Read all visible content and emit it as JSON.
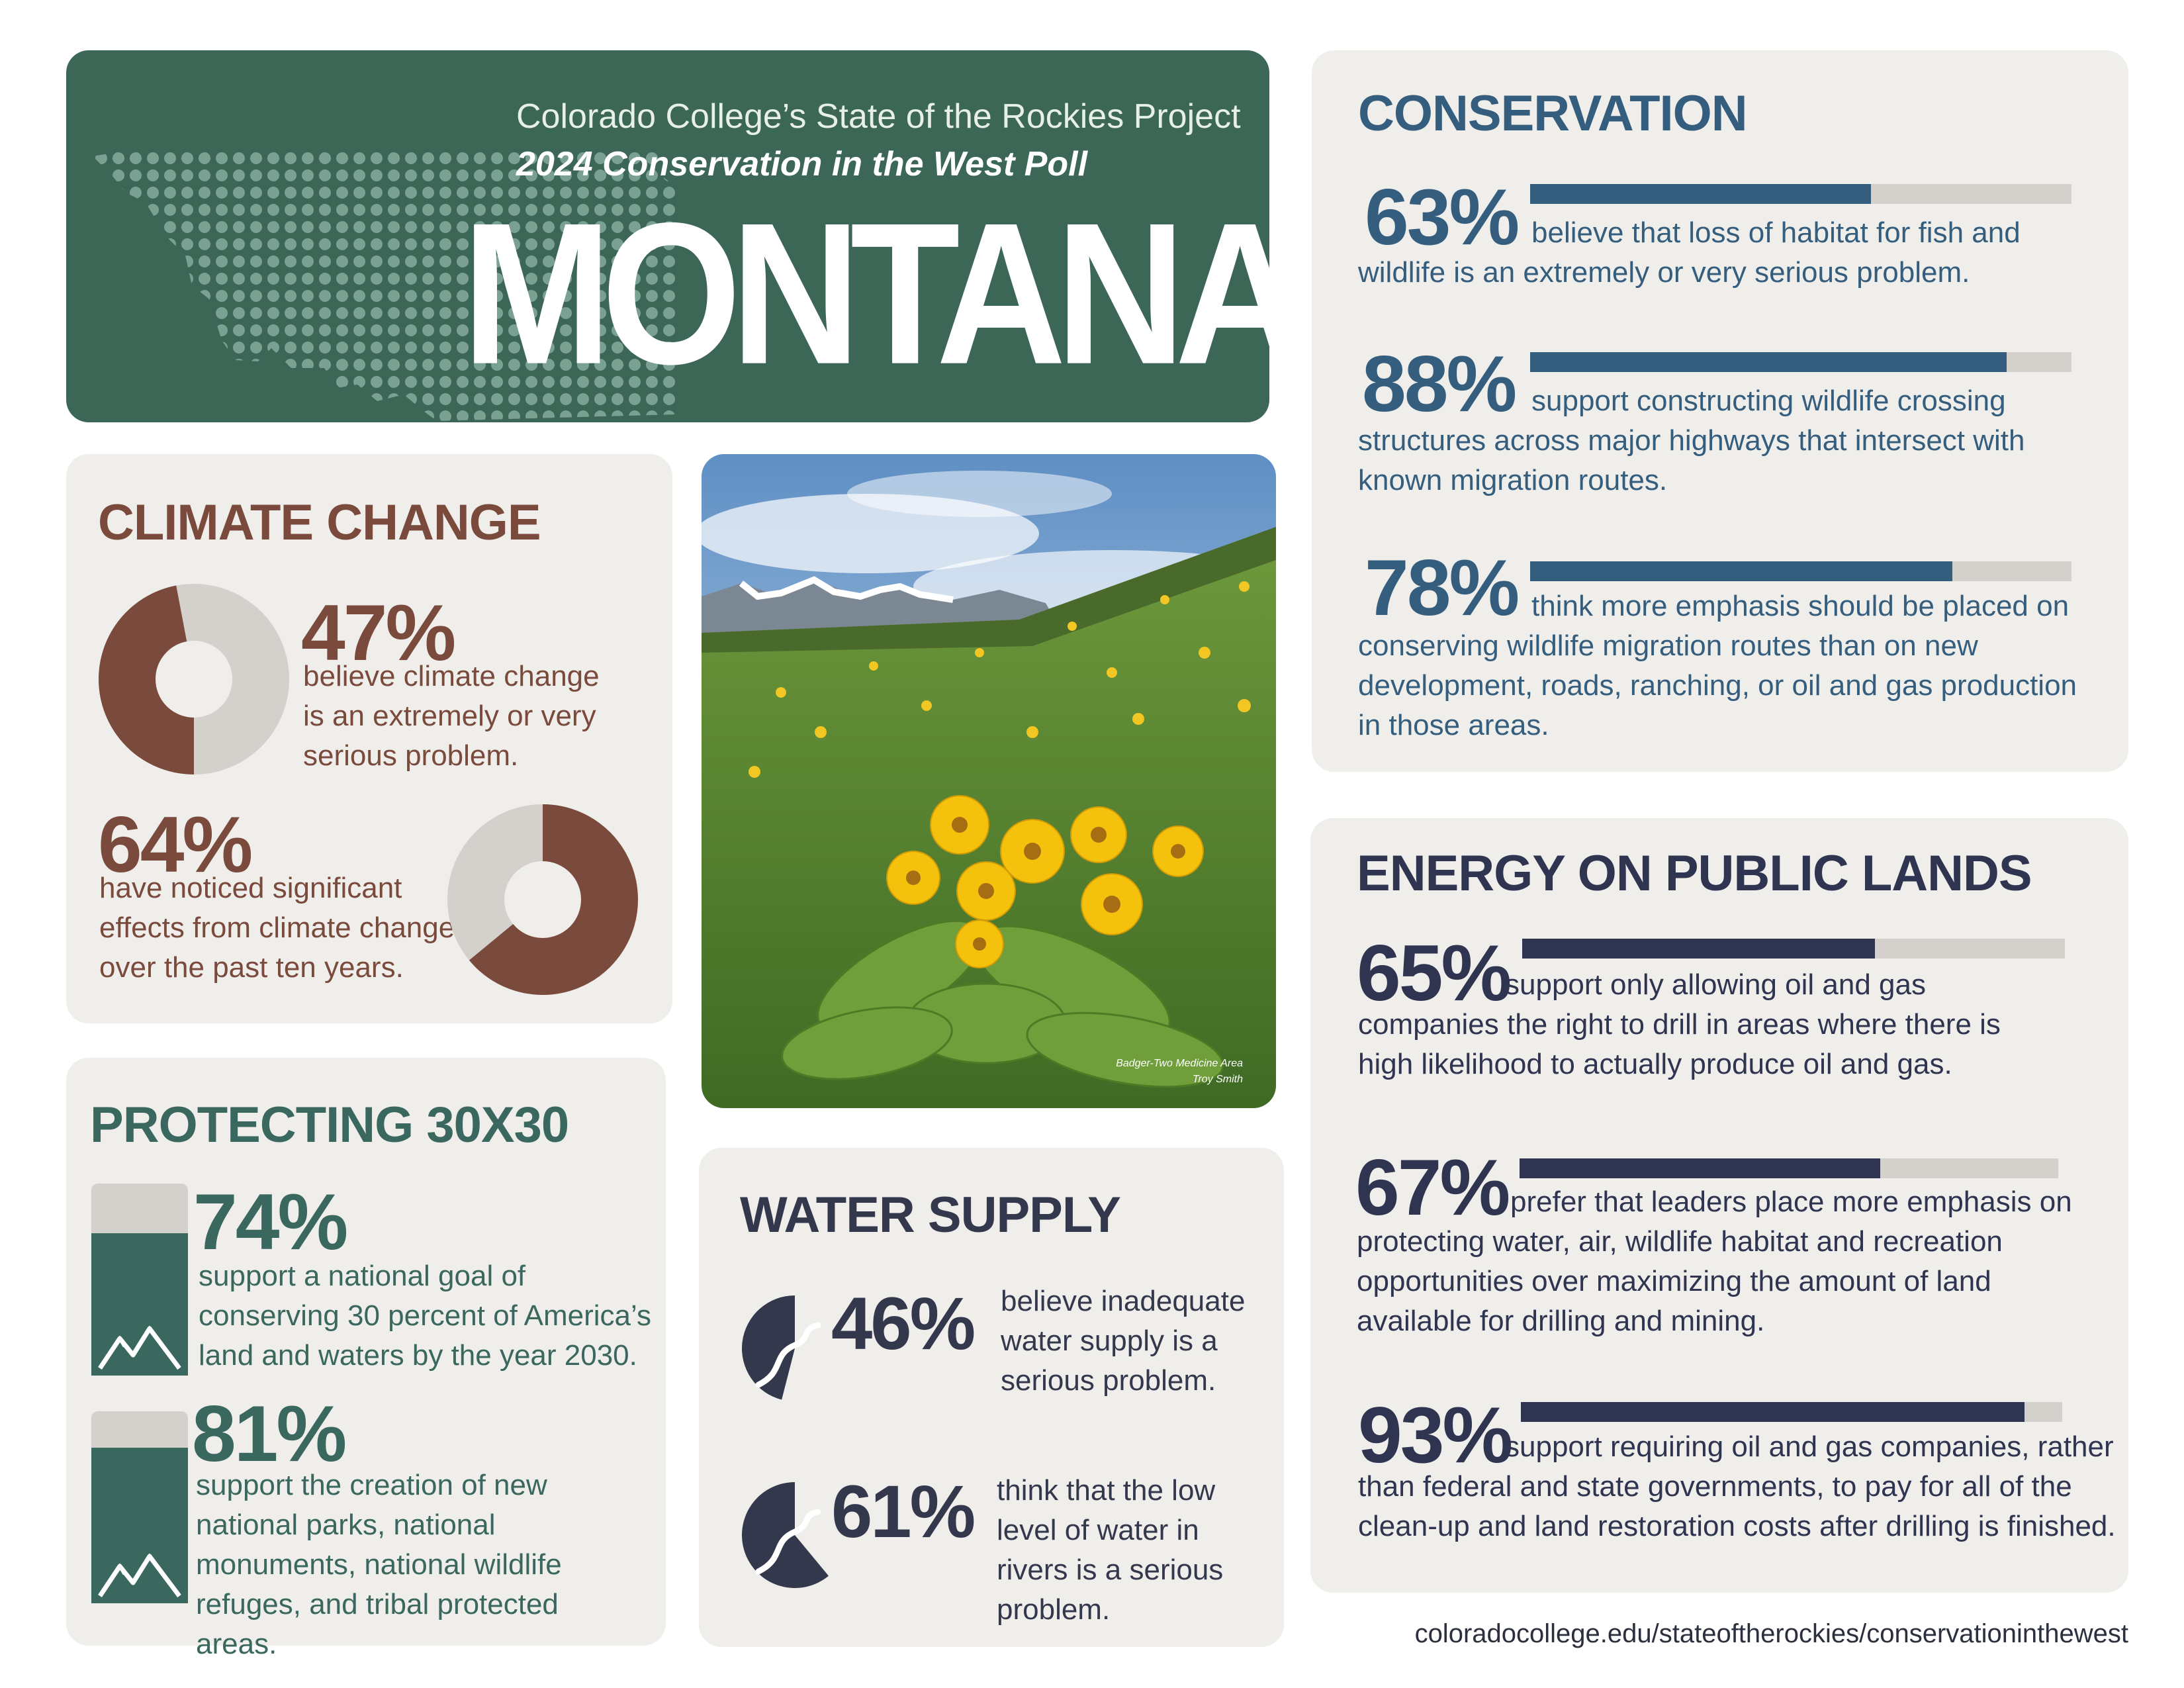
{
  "header": {
    "org": "Colorado College’s State of the Rockies Project",
    "poll": "2024 Conservation in the West Poll",
    "state": "MONTANA"
  },
  "colors": {
    "header_green": "#3c6656",
    "climate_brown": "#7a4a3d",
    "protect_green": "#3a675e",
    "conservation_blue": "#355d7e",
    "energy_navy": "#2f3450",
    "water_navy": "#34384d",
    "bar_track": "#d4d1cc",
    "card_bg": "#efeeea"
  },
  "climate": {
    "title": "CLIMATE CHANGE",
    "stats": [
      {
        "pct": "47%",
        "value": 47,
        "text": "believe climate change is an extremely or very serious problem."
      },
      {
        "pct": "64%",
        "value": 64,
        "text": "have noticed significant effects from climate change over the past ten years."
      }
    ]
  },
  "photo": {
    "credit_place": "Badger-Two Medicine Area",
    "credit_name": "Troy Smith"
  },
  "protecting": {
    "title": "PROTECTING 30X30",
    "icon": "mountain-icon",
    "stats": [
      {
        "pct": "74%",
        "value": 74,
        "text": "support a national goal of conserving 30 percent of America’s land and waters by the year 2030."
      },
      {
        "pct": "81%",
        "value": 81,
        "text": "support the creation of new national parks, national monuments, national wildlife refuges, and tribal protected areas."
      }
    ]
  },
  "water": {
    "title": "WATER SUPPLY",
    "icon": "river-icon",
    "stats": [
      {
        "pct": "46%",
        "value": 46,
        "text": "believe inadequate water supply is a serious problem."
      },
      {
        "pct": "61%",
        "value": 61,
        "text": "think that the low level of water in rivers is a serious problem."
      }
    ]
  },
  "conservation": {
    "title": "CONSERVATION",
    "stats": [
      {
        "pct": "63%",
        "value": 63,
        "text": "believe that loss of habitat for fish and wildlife is an extremely or very serious problem."
      },
      {
        "pct": "88%",
        "value": 88,
        "text": "support constructing wildlife crossing structures across major highways that intersect with known migration routes."
      },
      {
        "pct": "78%",
        "value": 78,
        "text": "think more emphasis should be placed on conserving wildlife migration routes than on new development, roads, ranching, or oil and gas production in those areas."
      }
    ]
  },
  "energy": {
    "title": "ENERGY ON PUBLIC LANDS",
    "stats": [
      {
        "pct": "65%",
        "value": 65,
        "text": "support only allowing oil and gas companies the right to drill in areas where there is high likelihood to actually produce oil and gas."
      },
      {
        "pct": "67%",
        "value": 67,
        "text": "prefer that leaders place more emphasis on protecting water, air, wildlife habitat and recreation opportunities over maximizing the amount of land available for drilling and mining."
      },
      {
        "pct": "93%",
        "value": 93,
        "text": "support requiring oil and gas companies, rather than federal and state governments, to pay for all of the clean-up and land restoration costs after drilling is finished."
      }
    ]
  },
  "footer": {
    "url": "coloradocollege.edu/stateoftherockies/conservationinthewest"
  }
}
